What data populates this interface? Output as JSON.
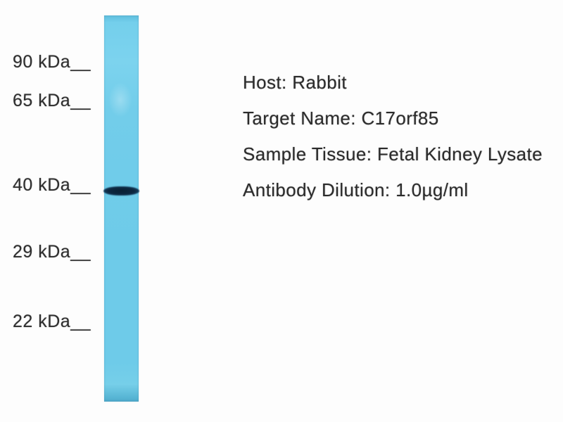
{
  "blot": {
    "lane_color": "#6ecbe9",
    "band_color": "#0d2740",
    "band_at": "40 kDa",
    "markers": [
      {
        "kda": 90,
        "label": "90 kDa__"
      },
      {
        "kda": 65,
        "label": "65 kDa__"
      },
      {
        "kda": 40,
        "label": "40 kDa__"
      },
      {
        "kda": 29,
        "label": "29 kDa__"
      },
      {
        "kda": 22,
        "label": "22 kDa__"
      }
    ]
  },
  "annotations": {
    "host": "Host: Rabbit",
    "target_name": "Target Name: C17orf85",
    "sample_tissue": "Sample Tissue: Fetal Kidney Lysate",
    "antibody_dilution": "Antibody Dilution: 1.0µg/ml"
  }
}
